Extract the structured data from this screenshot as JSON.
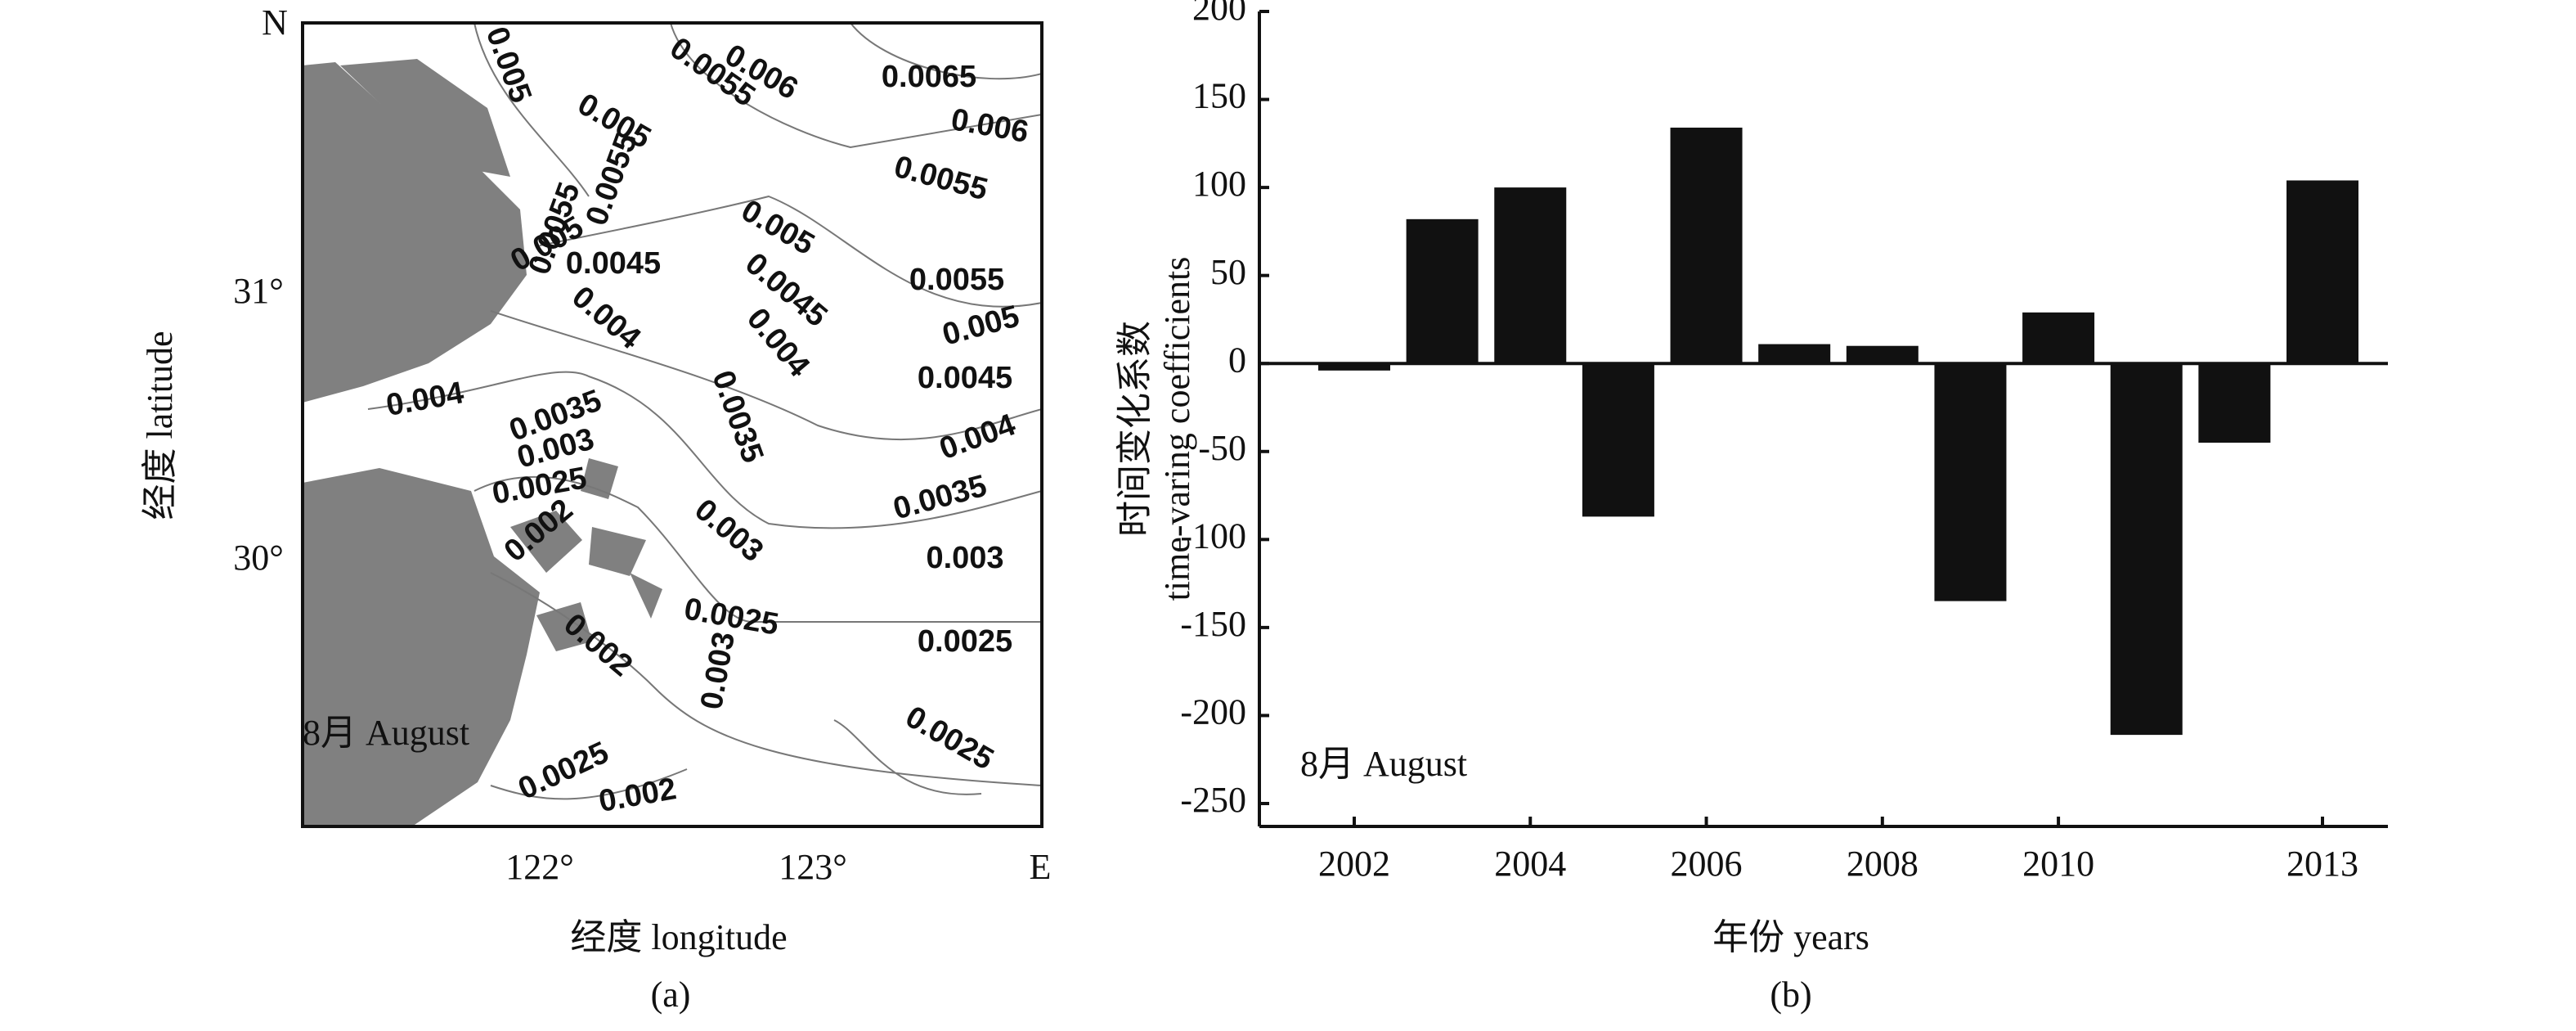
{
  "map": {
    "north_label": "N",
    "east_label": "E",
    "y_ticks": [
      "31°",
      "30°"
    ],
    "x_ticks": [
      "122°",
      "123°"
    ],
    "x_label": "经度 longitude",
    "y_label": "经度 latitude",
    "month_label": "8月 August",
    "panel_label": "(a)",
    "contour_labels": [
      "0.005",
      "0.0055",
      "0.006",
      "0.0065",
      "0.006",
      "0.005",
      "0.0055",
      "0.0055",
      "0.005",
      "0.0055",
      "0.005",
      "0.0045",
      "0.0045",
      "0.0055",
      "0.004",
      "0.004",
      "0.005",
      "0.0045",
      "0.004",
      "0.0035",
      "0.0035",
      "0.004",
      "0.003",
      "0.0025",
      "0.0035",
      "0.003",
      "0.002",
      "0.003",
      "0.0025",
      "0.0025",
      "0.002",
      "0.003",
      "0.0025",
      "0.0025",
      "0.002"
    ]
  },
  "chart_data": {
    "type": "bar",
    "x_label": "年份 years",
    "y_label": [
      "时间变化系数",
      "time-varing coefficients"
    ],
    "annotation": "8月 August",
    "panel_label": "(b)",
    "categories": [
      "2002",
      null,
      "2004",
      null,
      "2006",
      null,
      "2008",
      null,
      "2010",
      null,
      null,
      "2013"
    ],
    "values": [
      -4,
      82,
      100,
      -87,
      134,
      11,
      10,
      -135,
      29,
      -211,
      -45,
      104
    ],
    "color": "#111111",
    "ylim": [
      -250,
      200
    ],
    "yticks": [
      -250,
      -200,
      -150,
      -100,
      -50,
      0,
      50,
      100,
      150,
      200
    ]
  }
}
